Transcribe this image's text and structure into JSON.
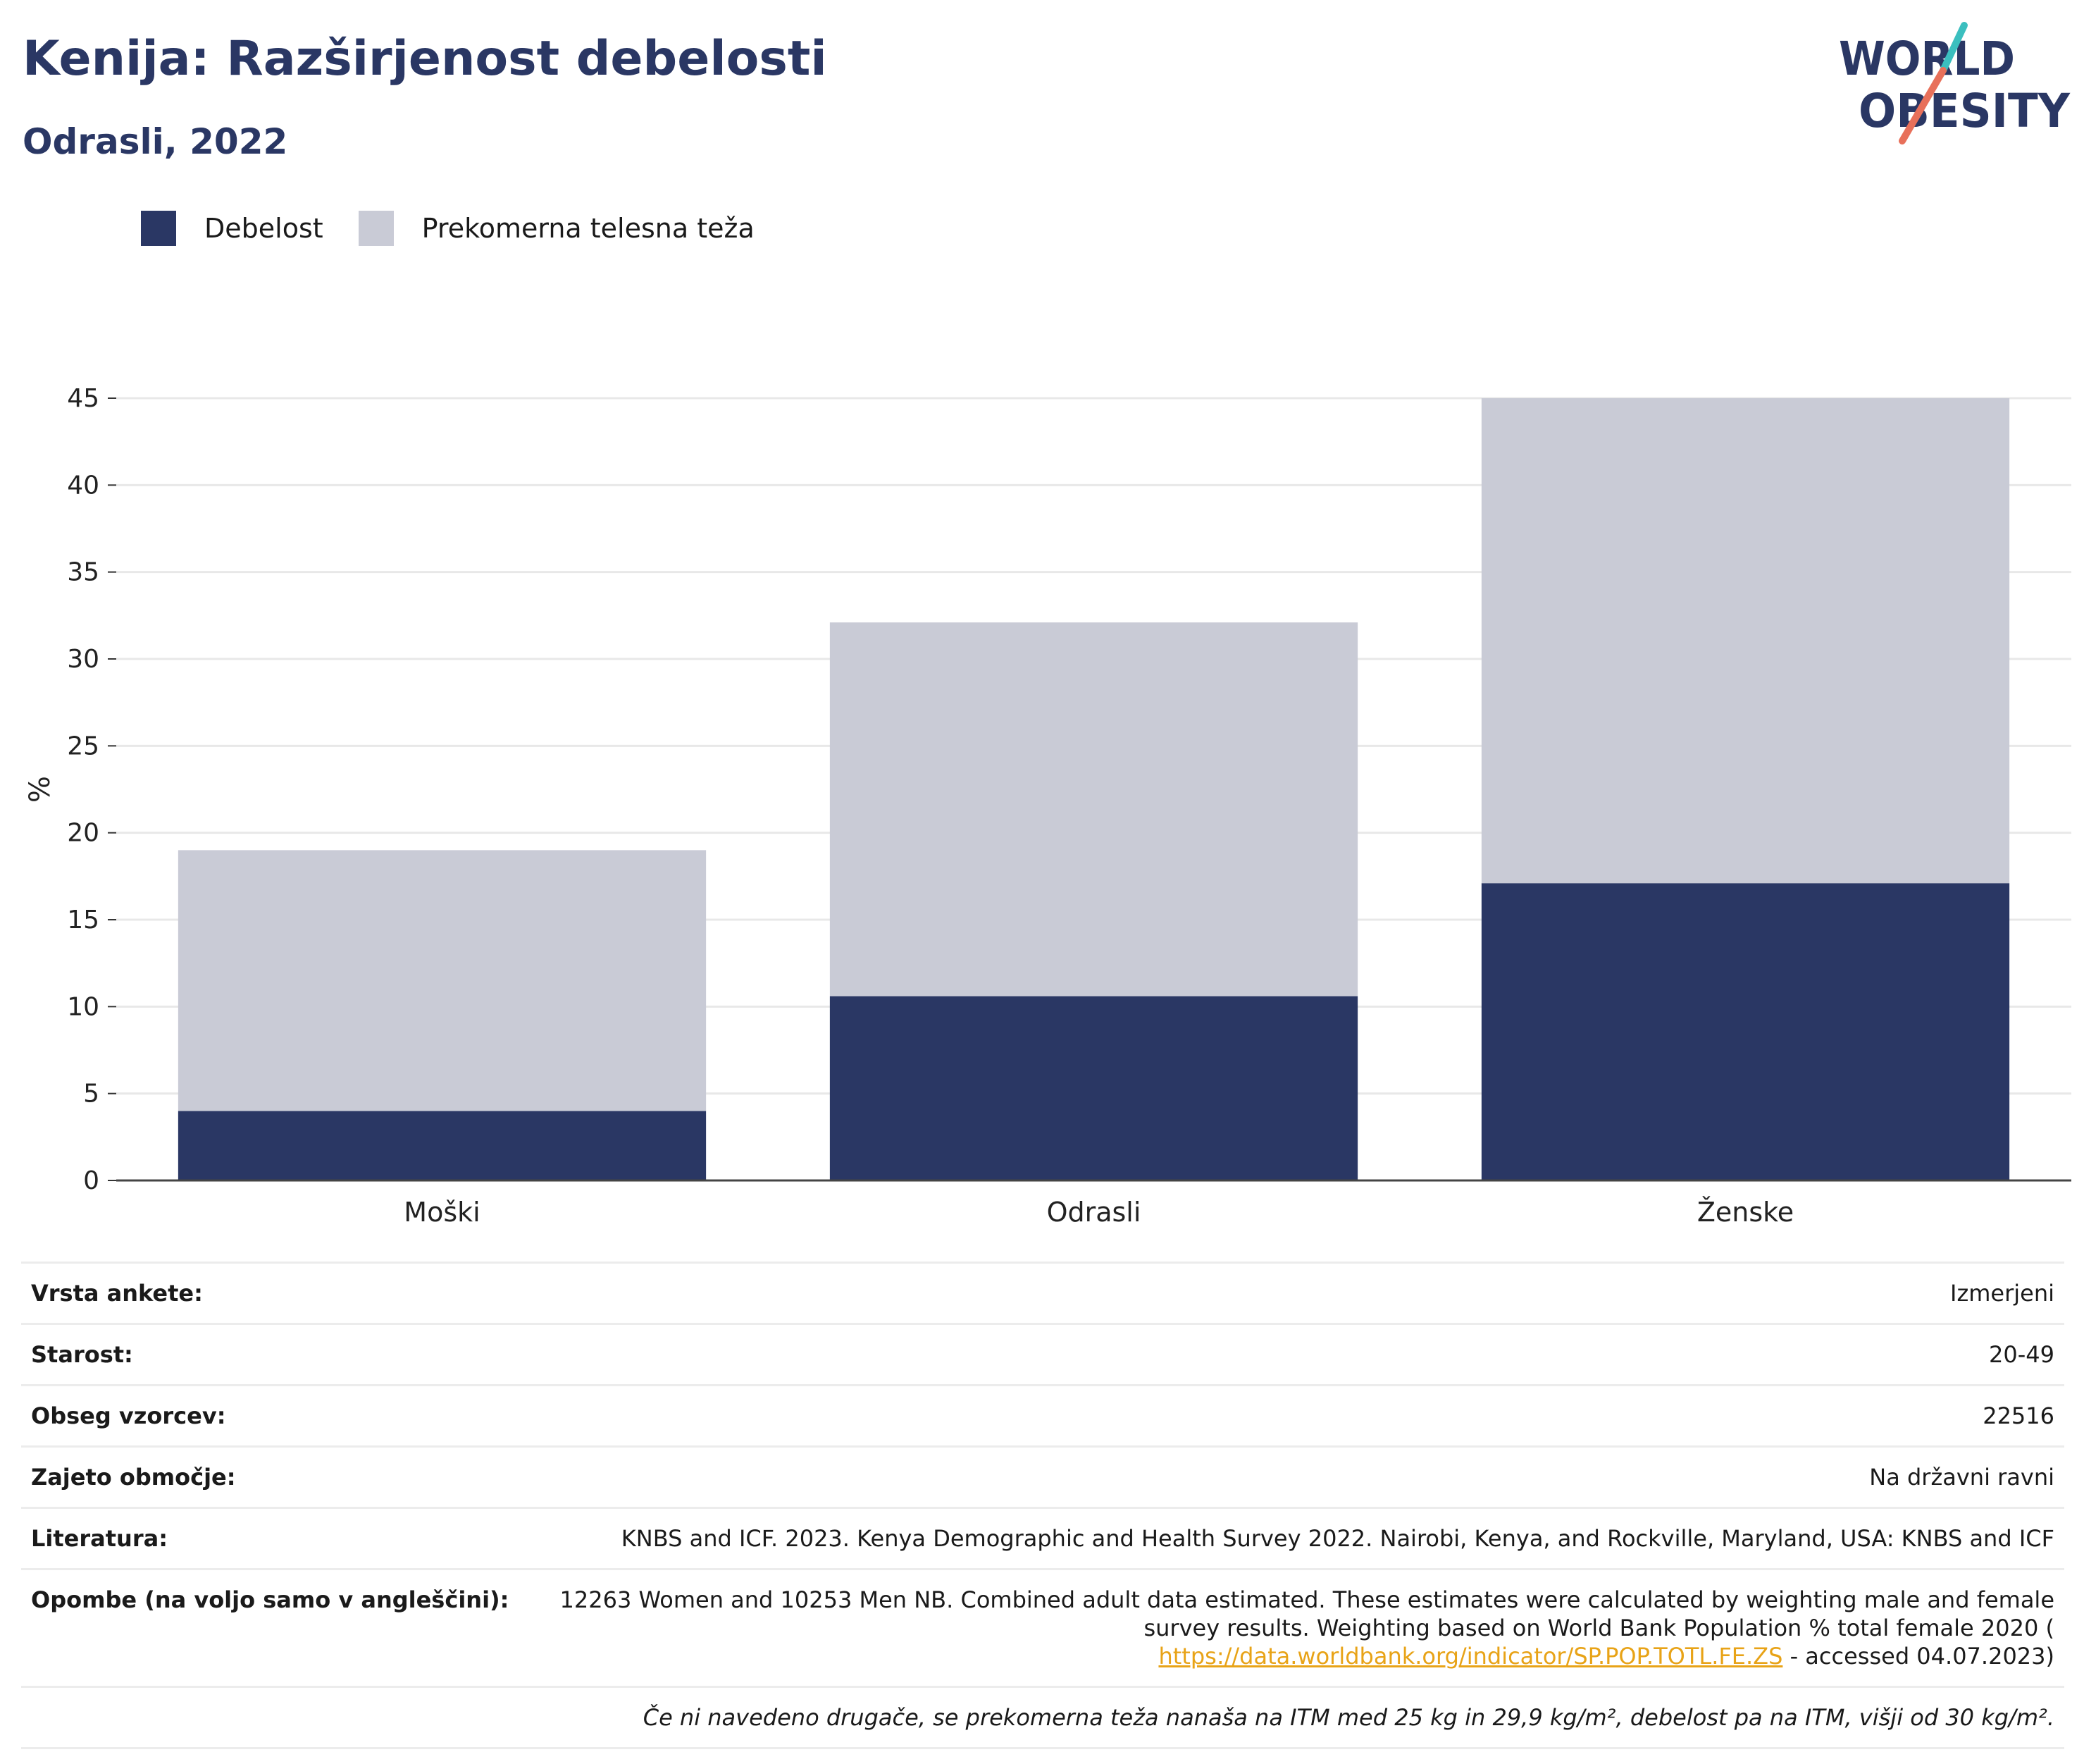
{
  "header": {
    "title": "Kenija: Razširjenost debelosti",
    "subtitle": "Odrasli, 2022"
  },
  "logo": {
    "line1": "WORLD",
    "line2": "OBESITY"
  },
  "colors": {
    "obesity": "#2a3764",
    "overweight": "#c9cbd6",
    "title": "#2a3764",
    "logo_teal": "#3bbfbf",
    "logo_coral": "#e8705a"
  },
  "legend": {
    "obesity_label": "Debelost",
    "overweight_label": "Prekomerna telesna teža"
  },
  "chart_data": {
    "type": "bar",
    "stacked": true,
    "categories": [
      "Moški",
      "Odrasli",
      "Ženske"
    ],
    "series": [
      {
        "name": "Debelost",
        "values": [
          4.0,
          10.6,
          17.1
        ]
      },
      {
        "name": "Prekomerna telesna teža",
        "values": [
          15.0,
          21.5,
          27.9
        ]
      }
    ],
    "ylabel": "%",
    "ylim": [
      0,
      45
    ],
    "yticks": [
      0,
      5,
      10,
      15,
      20,
      25,
      30,
      35,
      40,
      45
    ],
    "grid": true,
    "legend_position": "top-left"
  },
  "info": {
    "rows": [
      {
        "key": "Vrsta ankete:",
        "value": "Izmerjeni"
      },
      {
        "key": "Starost:",
        "value": "20-49"
      },
      {
        "key": "Obseg vzorcev:",
        "value": "22516"
      },
      {
        "key": "Zajeto območje:",
        "value": "Na državni ravni"
      },
      {
        "key": "Literatura:",
        "value": "KNBS and ICF. 2023. Kenya Demographic and Health Survey 2022. Nairobi, Kenya, and Rockville, Maryland, USA: KNBS and ICF"
      }
    ],
    "notes_key": "Opombe (na voljo samo v angleščini):",
    "notes_text": "12263 Women and 10253 Men NB. Combined adult data estimated. These estimates were calculated by weighting male and female survey results. Weighting based on World Bank Population % total female 2020 (",
    "notes_link": "https://data.worldbank.org/indicator/SP.POP.TOTL.FE.ZS",
    "notes_suffix": " - accessed 04.07.2023)",
    "footnote": "Če ni navedeno drugače, se prekomerna teža nanaša na ITM med 25 kg in 29,9 kg/m², debelost pa na ITM, višji od 30 kg/m²."
  }
}
